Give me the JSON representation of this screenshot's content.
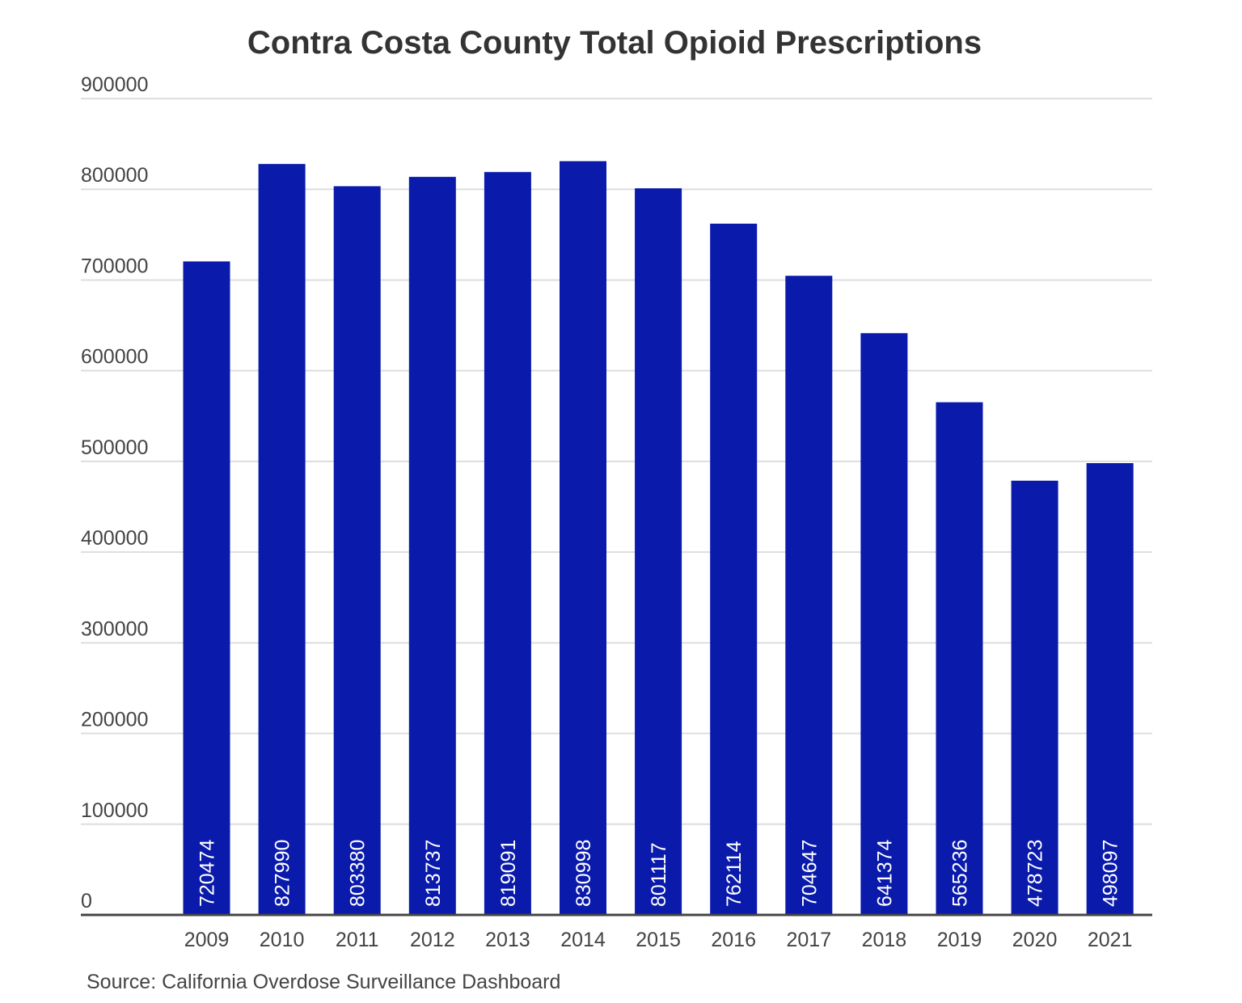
{
  "chart_data": {
    "type": "bar",
    "title": "Contra Costa County Total Opioid Prescriptions",
    "xlabel": "",
    "ylabel": "",
    "categories": [
      "2009",
      "2010",
      "2011",
      "2012",
      "2013",
      "2014",
      "2015",
      "2016",
      "2017",
      "2018",
      "2019",
      "2020",
      "2021"
    ],
    "values": [
      720474,
      827990,
      803380,
      813737,
      819091,
      830998,
      801117,
      762114,
      704647,
      641374,
      565236,
      478723,
      498097
    ],
    "ylim": [
      0,
      900000
    ],
    "yticks": [
      0,
      100000,
      200000,
      300000,
      400000,
      500000,
      600000,
      700000,
      800000,
      900000
    ],
    "grid": true,
    "legend": "none",
    "data_labels": "inside-bottom-rotated",
    "bar_color": "#0a1aab",
    "source": "Source: California Overdose Surveillance Dashboard"
  }
}
